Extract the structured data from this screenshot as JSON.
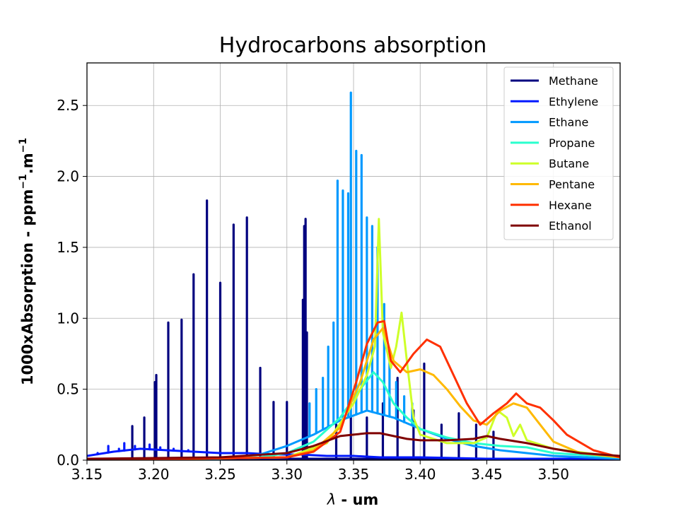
{
  "chart_data": {
    "type": "line",
    "title": "Hydrocarbons absorption",
    "xlabel_symbol": "λ",
    "xlabel_rest": " - um",
    "ylabel_main": "1000xAbsorption - ppm",
    "ylabel_sup1": "−1",
    "ylabel_mid": ".m",
    "ylabel_sup2": "−1",
    "xlim": [
      3.15,
      3.55
    ],
    "ylim": [
      0.0,
      2.8
    ],
    "x_ticks": [
      3.15,
      3.2,
      3.25,
      3.3,
      3.35,
      3.4,
      3.45,
      3.5
    ],
    "x_tick_labels": [
      "3.15",
      "3.20",
      "3.25",
      "3.30",
      "3.35",
      "3.40",
      "3.45",
      "3.50"
    ],
    "y_ticks": [
      0.0,
      0.5,
      1.0,
      1.5,
      2.0,
      2.5
    ],
    "y_tick_labels": [
      "0.0",
      "0.5",
      "1.0",
      "1.5",
      "2.0",
      "2.5"
    ],
    "grid": true,
    "legend_position": "top-right",
    "series": [
      {
        "name": "Methane",
        "color": "#00007f",
        "peaks": [
          [
            3.184,
            0.24
          ],
          [
            3.193,
            0.3
          ],
          [
            3.201,
            0.55
          ],
          [
            3.202,
            0.6
          ],
          [
            3.211,
            0.97
          ],
          [
            3.221,
            0.99
          ],
          [
            3.23,
            1.31
          ],
          [
            3.24,
            1.83
          ],
          [
            3.25,
            1.25
          ],
          [
            3.26,
            1.66
          ],
          [
            3.27,
            1.71
          ],
          [
            3.28,
            0.65
          ],
          [
            3.29,
            0.41
          ],
          [
            3.3,
            0.41
          ],
          [
            3.312,
            1.13
          ],
          [
            3.313,
            1.65
          ],
          [
            3.314,
            1.7
          ],
          [
            3.315,
            0.9
          ],
          [
            3.337,
            0.25
          ],
          [
            3.348,
            0.3
          ],
          [
            3.36,
            0.3
          ],
          [
            3.372,
            0.4
          ],
          [
            3.383,
            0.58
          ],
          [
            3.395,
            0.35
          ],
          [
            3.403,
            0.68
          ],
          [
            3.416,
            0.25
          ],
          [
            3.429,
            0.33
          ],
          [
            3.442,
            0.25
          ],
          [
            3.455,
            0.2
          ]
        ],
        "baseline": [
          [
            3.15,
            0.01
          ],
          [
            3.55,
            0.01
          ]
        ]
      },
      {
        "name": "Ethylene",
        "color": "#0019ff",
        "baseline": [
          [
            3.15,
            0.03
          ],
          [
            3.17,
            0.06
          ],
          [
            3.19,
            0.08
          ],
          [
            3.21,
            0.07
          ],
          [
            3.23,
            0.06
          ],
          [
            3.25,
            0.05
          ],
          [
            3.27,
            0.05
          ],
          [
            3.29,
            0.04
          ],
          [
            3.31,
            0.04
          ],
          [
            3.33,
            0.03
          ],
          [
            3.35,
            0.03
          ],
          [
            3.37,
            0.02
          ],
          [
            3.4,
            0.02
          ],
          [
            3.45,
            0.01
          ],
          [
            3.55,
            0.01
          ]
        ],
        "peaks": [
          [
            3.158,
            0.05
          ],
          [
            3.166,
            0.1
          ],
          [
            3.174,
            0.08
          ],
          [
            3.178,
            0.12
          ],
          [
            3.186,
            0.1
          ],
          [
            3.197,
            0.11
          ],
          [
            3.205,
            0.09
          ],
          [
            3.215,
            0.08
          ],
          [
            3.226,
            0.07
          ]
        ]
      },
      {
        "name": "Ethane",
        "color": "#0099ff",
        "baseline": [
          [
            3.15,
            0.0
          ],
          [
            3.25,
            0.01
          ],
          [
            3.28,
            0.04
          ],
          [
            3.3,
            0.1
          ],
          [
            3.32,
            0.18
          ],
          [
            3.34,
            0.28
          ],
          [
            3.36,
            0.35
          ],
          [
            3.38,
            0.3
          ],
          [
            3.4,
            0.22
          ],
          [
            3.42,
            0.15
          ],
          [
            3.44,
            0.1
          ],
          [
            3.46,
            0.07
          ],
          [
            3.48,
            0.05
          ],
          [
            3.5,
            0.03
          ],
          [
            3.55,
            0.01
          ]
        ],
        "peaks": [
          [
            3.317,
            0.4
          ],
          [
            3.322,
            0.5
          ],
          [
            3.327,
            0.58
          ],
          [
            3.331,
            0.8
          ],
          [
            3.335,
            0.97
          ],
          [
            3.338,
            1.97
          ],
          [
            3.342,
            1.9
          ],
          [
            3.346,
            1.88
          ],
          [
            3.348,
            2.59
          ],
          [
            3.352,
            2.18
          ],
          [
            3.356,
            2.15
          ],
          [
            3.36,
            1.71
          ],
          [
            3.364,
            1.65
          ],
          [
            3.368,
            1.5
          ],
          [
            3.373,
            1.1
          ],
          [
            3.377,
            0.78
          ],
          [
            3.382,
            0.55
          ],
          [
            3.388,
            0.45
          ],
          [
            3.394,
            0.4
          ]
        ]
      },
      {
        "name": "Propane",
        "color": "#29ffce",
        "points": [
          [
            3.15,
            0.0
          ],
          [
            3.28,
            0.02
          ],
          [
            3.3,
            0.05
          ],
          [
            3.32,
            0.13
          ],
          [
            3.34,
            0.3
          ],
          [
            3.355,
            0.5
          ],
          [
            3.365,
            0.62
          ],
          [
            3.372,
            0.55
          ],
          [
            3.38,
            0.4
          ],
          [
            3.39,
            0.3
          ],
          [
            3.4,
            0.22
          ],
          [
            3.42,
            0.16
          ],
          [
            3.44,
            0.12
          ],
          [
            3.46,
            0.1
          ],
          [
            3.48,
            0.09
          ],
          [
            3.5,
            0.05
          ],
          [
            3.55,
            0.02
          ]
        ]
      },
      {
        "name": "Butane",
        "color": "#ceff29",
        "points": [
          [
            3.15,
            0.0
          ],
          [
            3.3,
            0.02
          ],
          [
            3.33,
            0.12
          ],
          [
            3.35,
            0.4
          ],
          [
            3.36,
            0.6
          ],
          [
            3.366,
            0.8
          ],
          [
            3.369,
            1.7
          ],
          [
            3.372,
            0.9
          ],
          [
            3.378,
            0.65
          ],
          [
            3.382,
            0.8
          ],
          [
            3.386,
            1.04
          ],
          [
            3.39,
            0.7
          ],
          [
            3.395,
            0.3
          ],
          [
            3.4,
            0.18
          ],
          [
            3.42,
            0.12
          ],
          [
            3.44,
            0.12
          ],
          [
            3.45,
            0.16
          ],
          [
            3.458,
            0.35
          ],
          [
            3.465,
            0.3
          ],
          [
            3.47,
            0.17
          ],
          [
            3.475,
            0.25
          ],
          [
            3.48,
            0.14
          ],
          [
            3.5,
            0.08
          ],
          [
            3.55,
            0.02
          ]
        ]
      },
      {
        "name": "Pentane",
        "color": "#ffb900",
        "points": [
          [
            3.15,
            0.0
          ],
          [
            3.3,
            0.02
          ],
          [
            3.32,
            0.07
          ],
          [
            3.34,
            0.23
          ],
          [
            3.355,
            0.55
          ],
          [
            3.365,
            0.85
          ],
          [
            3.372,
            0.93
          ],
          [
            3.38,
            0.7
          ],
          [
            3.39,
            0.62
          ],
          [
            3.4,
            0.64
          ],
          [
            3.41,
            0.6
          ],
          [
            3.42,
            0.5
          ],
          [
            3.43,
            0.38
          ],
          [
            3.44,
            0.28
          ],
          [
            3.45,
            0.25
          ],
          [
            3.46,
            0.35
          ],
          [
            3.47,
            0.4
          ],
          [
            3.48,
            0.37
          ],
          [
            3.49,
            0.25
          ],
          [
            3.5,
            0.13
          ],
          [
            3.52,
            0.05
          ],
          [
            3.55,
            0.02
          ]
        ]
      },
      {
        "name": "Hexane",
        "color": "#ff3000",
        "points": [
          [
            3.15,
            0.0
          ],
          [
            3.3,
            0.02
          ],
          [
            3.32,
            0.06
          ],
          [
            3.34,
            0.2
          ],
          [
            3.352,
            0.55
          ],
          [
            3.36,
            0.82
          ],
          [
            3.368,
            0.97
          ],
          [
            3.373,
            0.98
          ],
          [
            3.378,
            0.7
          ],
          [
            3.385,
            0.62
          ],
          [
            3.395,
            0.75
          ],
          [
            3.405,
            0.85
          ],
          [
            3.415,
            0.8
          ],
          [
            3.425,
            0.6
          ],
          [
            3.435,
            0.4
          ],
          [
            3.445,
            0.25
          ],
          [
            3.455,
            0.33
          ],
          [
            3.465,
            0.4
          ],
          [
            3.472,
            0.47
          ],
          [
            3.48,
            0.4
          ],
          [
            3.49,
            0.37
          ],
          [
            3.5,
            0.28
          ],
          [
            3.51,
            0.18
          ],
          [
            3.53,
            0.07
          ],
          [
            3.55,
            0.02
          ]
        ]
      },
      {
        "name": "Ethanol",
        "color": "#7f0000",
        "points": [
          [
            3.15,
            0.01
          ],
          [
            3.25,
            0.02
          ],
          [
            3.3,
            0.05
          ],
          [
            3.32,
            0.1
          ],
          [
            3.34,
            0.17
          ],
          [
            3.35,
            0.18
          ],
          [
            3.36,
            0.19
          ],
          [
            3.37,
            0.19
          ],
          [
            3.38,
            0.17
          ],
          [
            3.39,
            0.15
          ],
          [
            3.4,
            0.14
          ],
          [
            3.42,
            0.14
          ],
          [
            3.44,
            0.15
          ],
          [
            3.45,
            0.17
          ],
          [
            3.46,
            0.15
          ],
          [
            3.48,
            0.12
          ],
          [
            3.5,
            0.08
          ],
          [
            3.52,
            0.05
          ],
          [
            3.55,
            0.03
          ]
        ]
      }
    ]
  }
}
